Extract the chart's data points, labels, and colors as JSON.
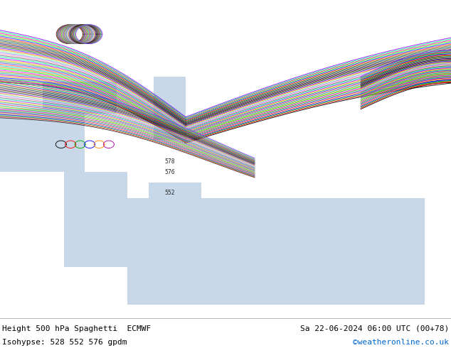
{
  "title_left": "Height 500 hPa Spaghetti  ECMWF",
  "title_right": "Sa 22-06-2024 06:00 UTC (00+78)",
  "subtitle_left": "Isohypse: 528 552 576 gpdm",
  "subtitle_right": "©weatheronline.co.uk",
  "subtitle_right_color": "#0066cc",
  "bg_land_color": "#c8f0a0",
  "bg_sea_color": "#d0d8d0",
  "border_color": "#808080",
  "text_color": "#000000",
  "map_extent_lon": [
    20,
    105
  ],
  "map_extent_lat": [
    5,
    60
  ],
  "figsize": [
    6.34,
    4.9
  ],
  "dpi": 100,
  "spaghetti_colors": [
    "#000000",
    "#ff0000",
    "#00aa00",
    "#0000ff",
    "#ff8800",
    "#aa00aa",
    "#00aaaa",
    "#888800",
    "#ff00ff",
    "#00ff00",
    "#cc8800",
    "#00cccc",
    "#ff4444",
    "#4444ff",
    "#44bb44",
    "#ffaa00",
    "#aa00ff",
    "#00ffaa",
    "#666666",
    "#ff88cc",
    "#8888ff",
    "#88ff88",
    "#ff6600",
    "#6600ff",
    "#006600",
    "#660000",
    "#000066",
    "#664400",
    "#004466",
    "#446600",
    "#ff2200",
    "#0022ff",
    "#22ff00",
    "#ff0088",
    "#00ff88",
    "#8800ff"
  ]
}
